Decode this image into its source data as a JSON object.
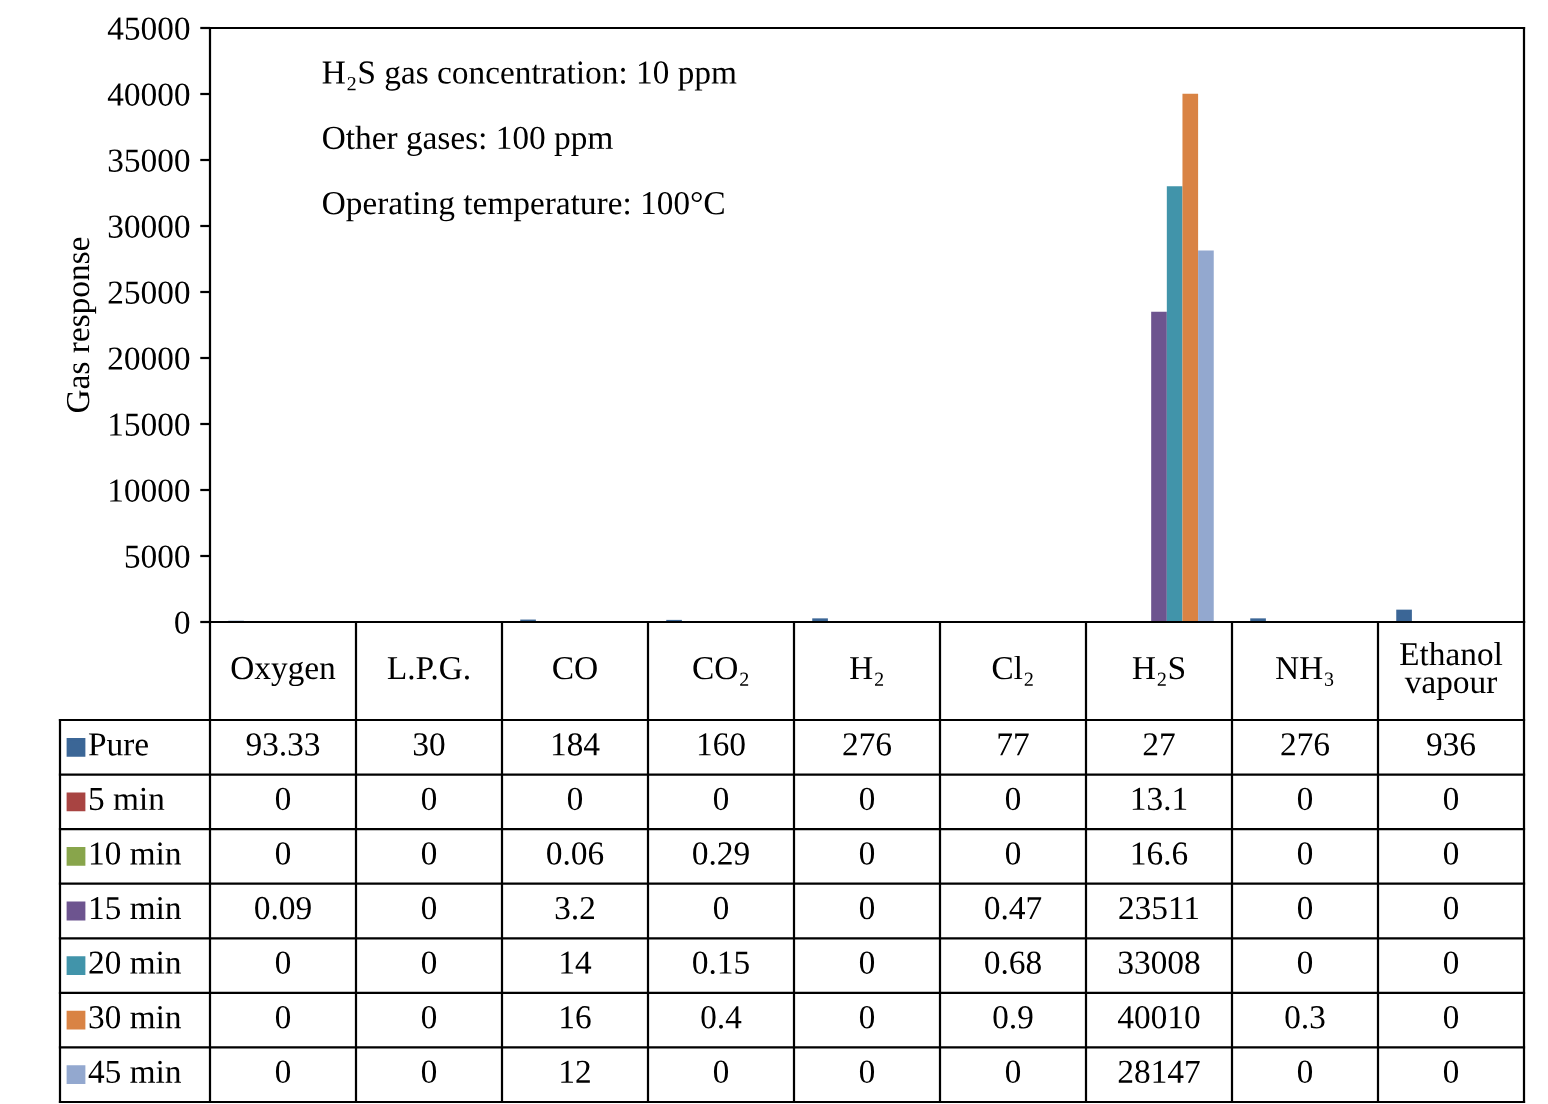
{
  "chart_data": {
    "type": "bar",
    "ylabel": "Gas response",
    "categories": [
      "Oxygen",
      "L.P.G.",
      "CO",
      "CO₂",
      "H₂",
      "Cl₂",
      "H₂S",
      "NH₃",
      "Ethanol vapour"
    ],
    "series": [
      {
        "name": "Pure",
        "color": "#3b6696",
        "values": [
          93.33,
          30,
          184,
          160,
          276,
          77,
          27,
          276,
          936
        ]
      },
      {
        "name": "5 min",
        "color": "#a84442",
        "values": [
          0,
          0,
          0,
          0,
          0,
          0,
          13.1,
          0,
          0
        ]
      },
      {
        "name": "10 min",
        "color": "#88a54b",
        "values": [
          0,
          0,
          0.06,
          0.29,
          0,
          0,
          16.6,
          0,
          0
        ]
      },
      {
        "name": "15 min",
        "color": "#6d548f",
        "values": [
          0.09,
          0,
          3.2,
          0,
          0,
          0.47,
          23511,
          0,
          0
        ]
      },
      {
        "name": "20 min",
        "color": "#4194aa",
        "values": [
          0,
          0,
          14,
          0.15,
          0,
          0.68,
          33008,
          0,
          0
        ]
      },
      {
        "name": "30 min",
        "color": "#d98344",
        "values": [
          0,
          0,
          16,
          0.4,
          0,
          0.9,
          40010,
          0.3,
          0
        ]
      },
      {
        "name": "45 min",
        "color": "#93a8cf",
        "values": [
          0,
          0,
          12,
          0,
          0,
          0,
          28147,
          0,
          0
        ]
      }
    ],
    "ylim": [
      0,
      45000
    ],
    "yticks": [
      0,
      5000,
      10000,
      15000,
      20000,
      25000,
      30000,
      35000,
      40000,
      45000
    ],
    "data_labels": true,
    "legend": "bottom",
    "annotations": [
      "H₂S gas concentration: 10 ppm",
      "Other gases: 100 ppm",
      "Operating temperature: 100°C"
    ]
  }
}
